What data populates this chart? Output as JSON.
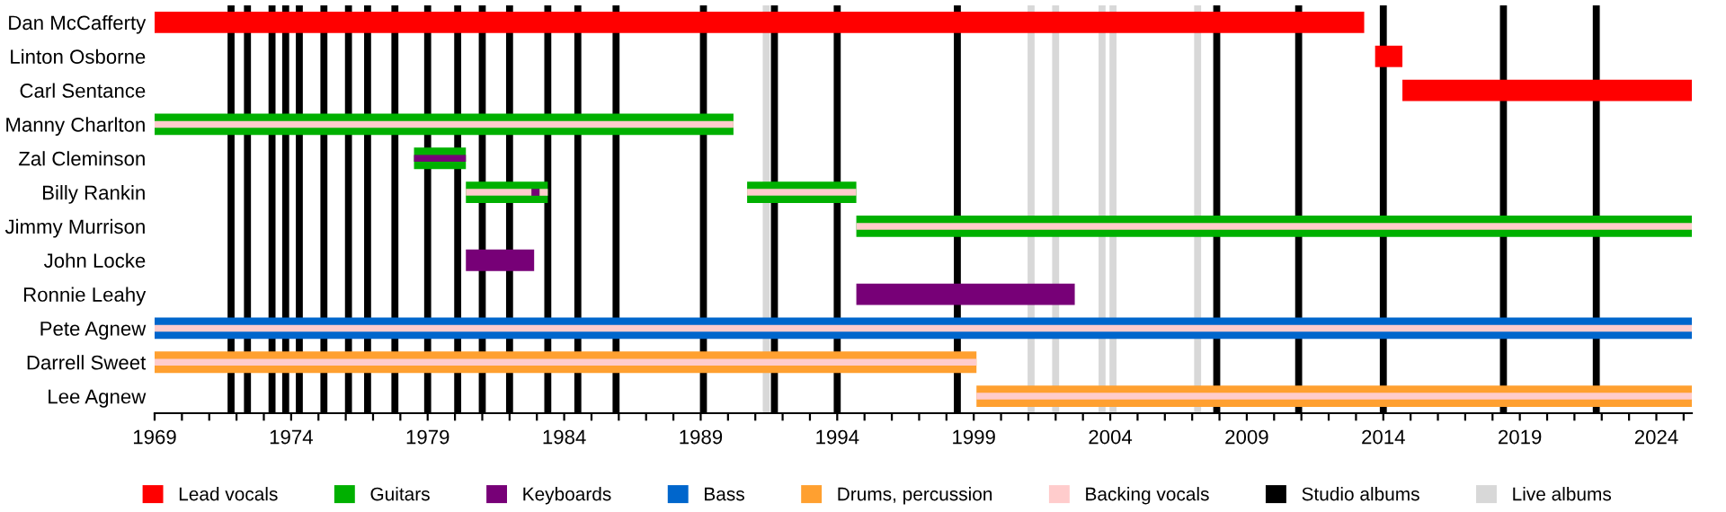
{
  "chart_data": {
    "type": "bar",
    "orientation": "horizontal",
    "categories": [
      "Dan McCafferty",
      "Linton Osborne",
      "Carl Sentance",
      "Manny Charlton",
      "Zal Cleminson",
      "Billy Rankin",
      "Jimmy Murrison",
      "John Locke",
      "Ronnie Leahy",
      "Pete Agnew",
      "Darrell Sweet",
      "Lee Agnew"
    ],
    "series": [
      {
        "name": "Lead vocals",
        "color": "#ff0000",
        "values": [
          44.3,
          1.0,
          10.6,
          null,
          null,
          null,
          null,
          null,
          null,
          null,
          null,
          null
        ],
        "base": [
          1969,
          2013.7,
          2014.7,
          null,
          null,
          null,
          null,
          null,
          null,
          null,
          null,
          null
        ]
      },
      {
        "name": "Guitars",
        "color": "#00b000",
        "values": [
          null,
          null,
          null,
          21.2,
          1.9,
          3.0,
          30.6,
          null,
          null,
          null,
          null,
          null
        ],
        "base": [
          null,
          null,
          null,
          1969,
          1978.5,
          1980.4,
          1994.7,
          null,
          null,
          null,
          null,
          null
        ]
      },
      {
        "color": "#00b000",
        "values": [
          null,
          null,
          null,
          null,
          null,
          4.0,
          null,
          null,
          null,
          null,
          null,
          null
        ],
        "base": [
          null,
          null,
          null,
          null,
          null,
          1990.7,
          null,
          null,
          null,
          null,
          null,
          null
        ]
      },
      {
        "name": "Keyboards",
        "color": "#770077",
        "values": [
          null,
          null,
          null,
          null,
          1.9,
          0.3,
          null,
          2.5,
          8.0,
          null,
          null,
          null
        ],
        "base": [
          null,
          null,
          null,
          null,
          1978.5,
          1982.8,
          null,
          1980.4,
          1994.7,
          null,
          null,
          null
        ]
      },
      {
        "name": "Bass",
        "color": "#0066cc",
        "values": [
          null,
          null,
          null,
          null,
          null,
          null,
          null,
          null,
          null,
          56.3,
          null,
          null
        ],
        "base": [
          null,
          null,
          null,
          null,
          null,
          null,
          null,
          null,
          null,
          1969,
          null,
          null
        ]
      },
      {
        "name": "Drums, percussion",
        "color": "#ffa030",
        "values": [
          null,
          null,
          null,
          null,
          null,
          null,
          null,
          null,
          null,
          null,
          30.1,
          26.2
        ],
        "base": [
          null,
          null,
          null,
          null,
          null,
          null,
          null,
          null,
          null,
          null,
          1969,
          1999.1
        ]
      },
      {
        "name": "Backing vocals",
        "color": "#ffcccc",
        "values": [
          null,
          null,
          null,
          21.2,
          null,
          2.4,
          30.6,
          null,
          null,
          56.3,
          30.1,
          26.2
        ],
        "base": [
          null,
          null,
          null,
          1969,
          null,
          1980.4,
          1994.7,
          null,
          null,
          1969,
          1969,
          1999.1
        ]
      },
      {
        "color": "#ffcccc",
        "values": [
          null,
          null,
          null,
          null,
          null,
          0.3,
          null,
          null,
          null,
          null,
          null,
          null
        ],
        "base": [
          null,
          null,
          null,
          null,
          null,
          1983.1,
          null,
          null,
          null,
          null,
          null,
          null
        ]
      },
      {
        "color": "#ffcccc",
        "values": [
          null,
          null,
          null,
          null,
          null,
          4.0,
          null,
          null,
          null,
          null,
          null,
          null
        ],
        "base": [
          null,
          null,
          null,
          null,
          null,
          1990.7,
          null,
          null,
          null,
          null,
          null,
          null
        ]
      }
    ],
    "ref_lines": [
      {
        "axis": "x",
        "value": 1971.8,
        "label": "Studio albums",
        "color": "#000000"
      },
      {
        "axis": "x",
        "value": 1972.4,
        "color": "#000000"
      },
      {
        "axis": "x",
        "value": 1973.3,
        "color": "#000000"
      },
      {
        "axis": "x",
        "value": 1973.8,
        "color": "#000000"
      },
      {
        "axis": "x",
        "value": 1974.3,
        "color": "#000000"
      },
      {
        "axis": "x",
        "value": 1975.2,
        "color": "#000000"
      },
      {
        "axis": "x",
        "value": 1976.1,
        "color": "#000000"
      },
      {
        "axis": "x",
        "value": 1976.8,
        "color": "#000000"
      },
      {
        "axis": "x",
        "value": 1977.8,
        "color": "#000000"
      },
      {
        "axis": "x",
        "value": 1979.0,
        "color": "#000000"
      },
      {
        "axis": "x",
        "value": 1980.1,
        "color": "#000000"
      },
      {
        "axis": "x",
        "value": 1981.0,
        "color": "#000000"
      },
      {
        "axis": "x",
        "value": 1982.0,
        "color": "#000000"
      },
      {
        "axis": "x",
        "value": 1983.4,
        "color": "#000000"
      },
      {
        "axis": "x",
        "value": 1984.5,
        "color": "#000000"
      },
      {
        "axis": "x",
        "value": 1985.9,
        "color": "#000000"
      },
      {
        "axis": "x",
        "value": 1989.1,
        "color": "#000000"
      },
      {
        "axis": "x",
        "value": 1991.7,
        "color": "#000000"
      },
      {
        "axis": "x",
        "value": 1994.0,
        "color": "#000000"
      },
      {
        "axis": "x",
        "value": 1998.4,
        "color": "#000000"
      },
      {
        "axis": "x",
        "value": 2007.9,
        "color": "#000000"
      },
      {
        "axis": "x",
        "value": 2010.9,
        "color": "#000000"
      },
      {
        "axis": "x",
        "value": 2014.0,
        "color": "#000000"
      },
      {
        "axis": "x",
        "value": 2018.4,
        "color": "#000000"
      },
      {
        "axis": "x",
        "value": 2021.8,
        "color": "#000000"
      },
      {
        "axis": "x",
        "value": 1991.4,
        "label": "Live albums",
        "color": "#d8d8d8"
      },
      {
        "axis": "x",
        "value": 2001.1,
        "color": "#d8d8d8"
      },
      {
        "axis": "x",
        "value": 2002.0,
        "color": "#d8d8d8"
      },
      {
        "axis": "x",
        "value": 2003.7,
        "color": "#d8d8d8"
      },
      {
        "axis": "x",
        "value": 2004.1,
        "color": "#d8d8d8"
      },
      {
        "axis": "x",
        "value": 2007.2,
        "color": "#d8d8d8"
      }
    ],
    "xlim": [
      1969,
      2025.3
    ],
    "xticks": [
      1969,
      {
        "value": 1970,
        "label": null
      },
      {
        "value": 1971,
        "label": null
      },
      {
        "value": 1972,
        "label": null
      },
      {
        "value": 1973,
        "label": null
      },
      1974,
      {
        "value": 1975,
        "label": null
      },
      {
        "value": 1976,
        "label": null
      },
      {
        "value": 1977,
        "label": null
      },
      {
        "value": 1978,
        "label": null
      },
      1979,
      {
        "value": 1980,
        "label": null
      },
      {
        "value": 1981,
        "label": null
      },
      {
        "value": 1982,
        "label": null
      },
      {
        "value": 1983,
        "label": null
      },
      1984,
      {
        "value": 1985,
        "label": null
      },
      {
        "value": 1986,
        "label": null
      },
      {
        "value": 1987,
        "label": null
      },
      {
        "value": 1988,
        "label": null
      },
      1989,
      {
        "value": 1990,
        "label": null
      },
      {
        "value": 1991,
        "label": null
      },
      {
        "value": 1992,
        "label": null
      },
      {
        "value": 1993,
        "label": null
      },
      1994,
      {
        "value": 1995,
        "label": null
      },
      {
        "value": 1996,
        "label": null
      },
      {
        "value": 1997,
        "label": null
      },
      {
        "value": 1998,
        "label": null
      },
      1999,
      {
        "value": 2000,
        "label": null
      },
      {
        "value": 2001,
        "label": null
      },
      {
        "value": 2002,
        "label": null
      },
      {
        "value": 2003,
        "label": null
      },
      2004,
      {
        "value": 2005,
        "label": null
      },
      {
        "value": 2006,
        "label": null
      },
      {
        "value": 2007,
        "label": null
      },
      {
        "value": 2008,
        "label": null
      },
      2009,
      {
        "value": 2010,
        "label": null
      },
      {
        "value": 2011,
        "label": null
      },
      {
        "value": 2012,
        "label": null
      },
      {
        "value": 2013,
        "label": null
      },
      2014,
      {
        "value": 2015,
        "label": null
      },
      {
        "value": 2016,
        "label": null
      },
      {
        "value": 2017,
        "label": null
      },
      {
        "value": 2018,
        "label": null
      },
      2019,
      {
        "value": 2020,
        "label": null
      },
      {
        "value": 2021,
        "label": null
      },
      {
        "value": 2022,
        "label": null
      },
      {
        "value": 2023,
        "label": null
      },
      2024,
      {
        "value": 2025,
        "label": null
      }
    ],
    "legend": "bottom",
    "grid": false
  }
}
